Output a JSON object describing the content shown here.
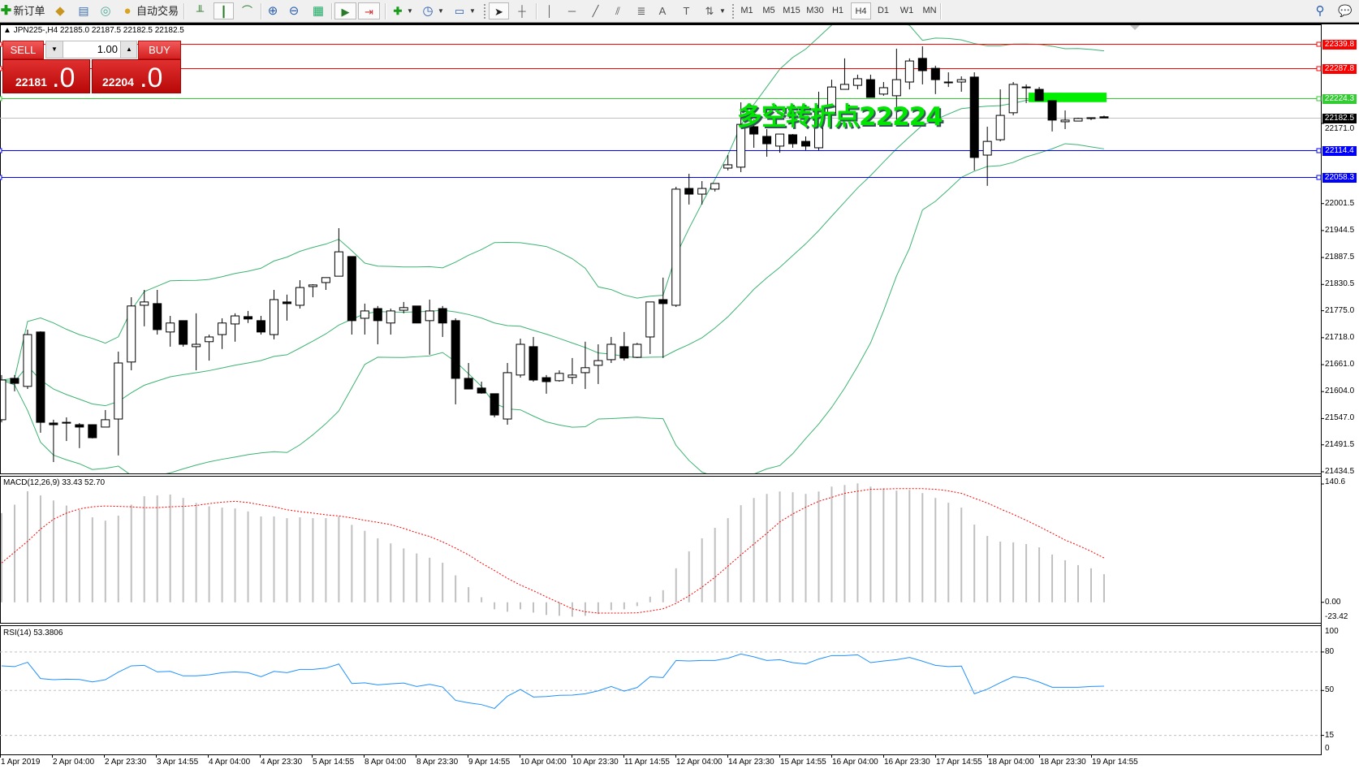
{
  "toolbar": {
    "new_order_label": "新订单",
    "autotrading_label": "自动交易",
    "icons": [
      "new-order-icon",
      "market-watch-icon",
      "navigator-icon",
      "signals-icon",
      "autotrading-icon",
      "bar-chart-icon",
      "candlestick-icon",
      "line-chart-icon",
      "zoom-in-icon",
      "zoom-out-icon",
      "tile-windows-icon",
      "autoscroll-icon",
      "chart-shift-icon",
      "indicators-icon",
      "periods-icon",
      "templates-icon",
      "cursor-icon",
      "crosshair-icon",
      "vertical-line-icon",
      "horizontal-line-icon",
      "trendline-icon",
      "channel-icon",
      "fibonacci-icon",
      "text-icon",
      "text-label-icon",
      "arrows-icon",
      "search-icon",
      "chat-icon"
    ],
    "timeframes": [
      "M1",
      "M5",
      "M15",
      "M30",
      "H1",
      "H4",
      "D1",
      "W1",
      "MN"
    ],
    "active_timeframe": "H4"
  },
  "chart": {
    "symbol_header": "JPN225-,H4  22185.0 22187.5 22182.5 22182.5",
    "one_click": {
      "sell_label": "SELL",
      "buy_label": "BUY",
      "lot": "1.00",
      "sell_price_main": "22181",
      "sell_price_frac": ".0",
      "buy_price_main": "22204",
      "buy_price_frac": ".0",
      "color": "#d42020"
    },
    "annotation": "多空转折点22224",
    "annotation_color": "#00e600",
    "levels": [
      {
        "price": 22339.8,
        "label": "22339.8",
        "color": "#ff0000"
      },
      {
        "price": 22287.8,
        "label": "22287.8",
        "color": "#ff0000"
      },
      {
        "price": 22224.3,
        "label": "22224.3",
        "color": "#33cc33"
      },
      {
        "price": 22182.5,
        "label": "22182.5",
        "color": "#000000",
        "line_color": "#c0c0c0"
      },
      {
        "price": 22114.4,
        "label": "22114.4",
        "color": "#0000ff"
      },
      {
        "price": 22058.3,
        "label": "22058.3",
        "color": "#0000ff"
      }
    ],
    "highlight_zone": {
      "price_from": 22216,
      "price_to": 22236,
      "color": "#00ee00"
    },
    "price_axis_ticks": [
      "22171.0",
      "22001.5",
      "21944.5",
      "21887.5",
      "21830.5",
      "21775.0",
      "21718.0",
      "21661.0",
      "21604.0",
      "21547.0",
      "21491.5",
      "21434.5"
    ],
    "time_labels": [
      "1 Apr 2019",
      "2 Apr 04:00",
      "2 Apr 23:30",
      "3 Apr 14:55",
      "4 Apr 04:00",
      "4 Apr 23:30",
      "5 Apr 14:55",
      "8 Apr 04:00",
      "8 Apr 23:30",
      "9 Apr 14:55",
      "10 Apr 04:00",
      "10 Apr 23:30",
      "11 Apr 14:55",
      "12 Apr 04:00",
      "14 Apr 23:30",
      "15 Apr 14:55",
      "16 Apr 04:00",
      "16 Apr 23:30",
      "17 Apr 14:55",
      "18 Apr 04:00",
      "18 Apr 23:30",
      "19 Apr 14:55"
    ],
    "band_color": "#3cb371"
  },
  "chart_data": [
    {
      "type": "candlestick",
      "ylim": [
        21431,
        22380.4
      ],
      "ohlc": [
        [
          21544.5,
          21639,
          21539,
          21628.5
        ],
        [
          21632,
          21639,
          21604.5,
          21621.5
        ],
        [
          21615,
          21735,
          21609.5,
          21724.5
        ],
        [
          21730,
          21731.5,
          21517,
          21539
        ],
        [
          21537.5,
          21544.5,
          21455,
          21534
        ],
        [
          21539,
          21549.5,
          21499.5,
          21539
        ],
        [
          21534,
          21537.5,
          21484.5,
          21529
        ],
        [
          21534,
          21534,
          21505,
          21506.5
        ],
        [
          21529,
          21565,
          21529,
          21544.5
        ],
        [
          21546,
          21688.5,
          21469,
          21664.5
        ],
        [
          21666.5,
          21803.5,
          21649,
          21785
        ],
        [
          21786.5,
          21819,
          21742,
          21793.5
        ],
        [
          21790,
          21819,
          21724.5,
          21735
        ],
        [
          21730,
          21764,
          21699,
          21749
        ],
        [
          21754,
          21754,
          21699,
          21704
        ],
        [
          21699,
          21769.5,
          21649,
          21704
        ],
        [
          21709.5,
          21724.5,
          21669.5,
          21719.5
        ],
        [
          21724.5,
          21759,
          21694,
          21749
        ],
        [
          21747,
          21769.5,
          21709.5,
          21764
        ],
        [
          21762.5,
          21774.5,
          21749,
          21757.5
        ],
        [
          21754,
          21764,
          21724.5,
          21730
        ],
        [
          21724.5,
          21819,
          21714.5,
          21798.5
        ],
        [
          21793.5,
          21809,
          21754,
          21790
        ],
        [
          21786.5,
          21839.5,
          21779.5,
          21824
        ],
        [
          21826,
          21831,
          21803.5,
          21829.5
        ],
        [
          21834.5,
          21845,
          21819,
          21845
        ],
        [
          21848,
          21949.5,
          21848,
          21899.5
        ],
        [
          21889.5,
          21889.5,
          21724.5,
          21754
        ],
        [
          21759,
          21790,
          21724.5,
          21774.5
        ],
        [
          21779.5,
          21785,
          21704,
          21754
        ],
        [
          21749,
          21779.5,
          21724.5,
          21774.5
        ],
        [
          21776,
          21793.5,
          21769.5,
          21781.5
        ],
        [
          21785,
          21785,
          21749,
          21749
        ],
        [
          21754,
          21798.5,
          21682,
          21774.5
        ],
        [
          21779.5,
          21785,
          21719.5,
          21749
        ],
        [
          21754,
          21759,
          21577,
          21632
        ],
        [
          21632,
          21664.5,
          21609.5,
          21609.5
        ],
        [
          21611.5,
          21625,
          21599.5,
          21601
        ],
        [
          21599.5,
          21599.5,
          21549.5,
          21554.5
        ],
        [
          21546,
          21664.5,
          21534,
          21644
        ],
        [
          21639,
          21716,
          21633.5,
          21704
        ],
        [
          21699,
          21719.5,
          21625,
          21628.5
        ],
        [
          21633.5,
          21639,
          21599.5,
          21625
        ],
        [
          21627,
          21649,
          21625,
          21642.5
        ],
        [
          21634,
          21675,
          21620,
          21639
        ],
        [
          21644,
          21709.5,
          21609.5,
          21654.5
        ],
        [
          21659.5,
          21704,
          21620,
          21669.5
        ],
        [
          21671.5,
          21719.5,
          21664.5,
          21704
        ],
        [
          21699,
          21730,
          21669.5,
          21675
        ],
        [
          21676.5,
          21707,
          21675,
          21704
        ],
        [
          21719.5,
          21793.5,
          21683.5,
          21793.5
        ],
        [
          21798.5,
          21845,
          21675,
          21790
        ],
        [
          21786.5,
          22037,
          21783,
          22032
        ],
        [
          22033.5,
          22064.5,
          21999.5,
          22021.5
        ],
        [
          22021.5,
          22049,
          21999.5,
          22033.5
        ],
        [
          22032,
          22044,
          22027,
          22044
        ],
        [
          22076.5,
          22104,
          22071.5,
          22083.5
        ],
        [
          22078.5,
          22215.5,
          22068,
          22169
        ],
        [
          22164,
          22179.5,
          22119.5,
          22148.5
        ],
        [
          22143.5,
          22159,
          22100.5,
          22128
        ],
        [
          22123,
          22148.5,
          22109,
          22148.5
        ],
        [
          22147,
          22148.5,
          22119.5,
          22128
        ],
        [
          22133,
          22143.5,
          22114.5,
          22123
        ],
        [
          22119.5,
          22238,
          22114.5,
          22198.5
        ],
        [
          22193.5,
          22263.5,
          22193.5,
          22248
        ],
        [
          22243,
          22308.5,
          22243,
          22253.5
        ],
        [
          22251.5,
          22274,
          22243,
          22265.5
        ],
        [
          22263.5,
          22274,
          22226,
          22226
        ],
        [
          22233,
          22258.5,
          22229.5,
          22246.5
        ],
        [
          22229.5,
          22329,
          22169,
          22263.5
        ],
        [
          22258.5,
          22308.5,
          22243,
          22303
        ],
        [
          22308.5,
          22334,
          22253.5,
          22282.5
        ],
        [
          22287.5,
          22293,
          22233,
          22263.5
        ],
        [
          22258.5,
          22279,
          22248,
          22258.5
        ],
        [
          22258.5,
          22270.5,
          22238,
          22263.5
        ],
        [
          22269,
          22279,
          22071.5,
          22099
        ],
        [
          22104,
          22164,
          22039,
          22133
        ],
        [
          22136.5,
          22243,
          22133,
          22188
        ],
        [
          22193.5,
          22258.5,
          22188,
          22253.5
        ],
        [
          22248,
          22253.5,
          22214,
          22248
        ],
        [
          22243,
          22248,
          22219,
          22219
        ],
        [
          22219,
          22219,
          22154,
          22178
        ],
        [
          22174.5,
          22198.5,
          22159,
          22178
        ],
        [
          22176,
          22183,
          22176,
          22181.5
        ],
        [
          22183,
          22183,
          22178,
          22183
        ],
        [
          22185,
          22187.5,
          22182.5,
          22182.5
        ]
      ]
    },
    {
      "type": "bar",
      "title": "MACD(12,26,9) 33.43 52.70",
      "ylim": [
        -23.42,
        140.6
      ],
      "y_ticks": [
        "140.6",
        "0.00",
        "-23.42"
      ],
      "histogram": [
        106,
        116,
        132,
        127,
        121,
        115,
        110,
        101,
        97,
        103,
        116,
        126,
        127,
        128,
        124,
        118,
        114,
        112.5,
        111.5,
        108,
        102,
        102,
        100,
        101,
        100,
        100,
        102,
        92,
        85,
        76,
        70,
        64,
        58,
        53,
        47,
        32,
        18,
        6,
        -8.3,
        -11.2,
        -8.3,
        -12.2,
        -15,
        -16,
        -17,
        -16,
        -14,
        -9.3,
        -8.3,
        -4.5,
        6.7,
        14.4,
        40.4,
        60.6,
        76,
        88.5,
        100,
        115.4,
        124,
        128.8,
        131.7,
        130.8,
        128.8,
        131.7,
        137.5,
        139.4,
        141.3,
        137.5,
        135.6,
        132.7,
        133.6,
        129.8,
        124,
        118.3,
        112.5,
        92.3,
        78.8,
        72.1,
        71.2,
        69.2,
        65.4,
        56.7,
        50,
        44.2,
        40.4,
        33.43
      ],
      "signal": [
        46.8,
        59.6,
        72.4,
        86.9,
        98.7,
        106,
        111,
        113.5,
        114.4,
        114,
        113.5,
        112.5,
        112.5,
        113.5,
        114,
        115,
        117.3,
        119,
        120,
        118.6,
        115.7,
        113.5,
        110,
        107.7,
        106,
        104,
        102.6,
        100.3,
        97.4,
        95,
        92.3,
        87.8,
        82.7,
        78.2,
        71.8,
        64.4,
        56.4,
        46.5,
        37.8,
        28.5,
        20.5,
        13.8,
        6.4,
        -0.6,
        -7.7,
        -11.2,
        -12.8,
        -12.8,
        -12.8,
        -12.5,
        -10.3,
        -7.7,
        -1.3,
        7.7,
        18,
        29.8,
        43,
        56.4,
        69.2,
        82,
        95.5,
        105,
        113,
        120,
        124.7,
        129.5,
        132,
        134.3,
        134.6,
        135,
        135,
        135,
        134.3,
        132.4,
        129.5,
        123.7,
        118,
        111,
        104.5,
        97.4,
        90,
        82,
        74,
        67.6,
        60.6,
        52.7
      ],
      "histogram_color": "#c0c0c0",
      "signal_color": "#ff0000"
    },
    {
      "type": "line",
      "title": "RSI(14) 53.3806",
      "ylim": [
        0,
        100
      ],
      "y_ticks": [
        "100",
        "80",
        "50",
        "15",
        "0"
      ],
      "levels": [
        80,
        50,
        15
      ],
      "values": [
        69.2,
        68.6,
        72,
        59.3,
        58.4,
        58.8,
        58.6,
        56.7,
        58.4,
        64.3,
        69.2,
        69.6,
        64.5,
        64.9,
        61.4,
        61.4,
        62.2,
        63.9,
        64.5,
        63.9,
        60.7,
        64.9,
        63.9,
        66.4,
        66.4,
        67.4,
        70.6,
        55.4,
        56,
        54.4,
        55.2,
        55.8,
        53.1,
        54.8,
        52.7,
        42.3,
        40.4,
        39,
        36,
        45.6,
        50.8,
        44.9,
        45.3,
        46.2,
        46.4,
        47.4,
        49.7,
        53.1,
        49.5,
        52.3,
        60.7,
        60.1,
        73.4,
        73,
        73.4,
        73.4,
        75.1,
        78.4,
        76.2,
        73.4,
        74,
        71.7,
        70.7,
        74.5,
        77.2,
        77.2,
        77.8,
        71.7,
        73,
        74,
        75.7,
        72.8,
        69.6,
        68.6,
        69,
        47.4,
        51,
        56.1,
        60.7,
        59.7,
        56.5,
        52.5,
        52.5,
        52.5,
        53.1,
        53.38
      ],
      "line_color": "#1e90ff"
    }
  ]
}
